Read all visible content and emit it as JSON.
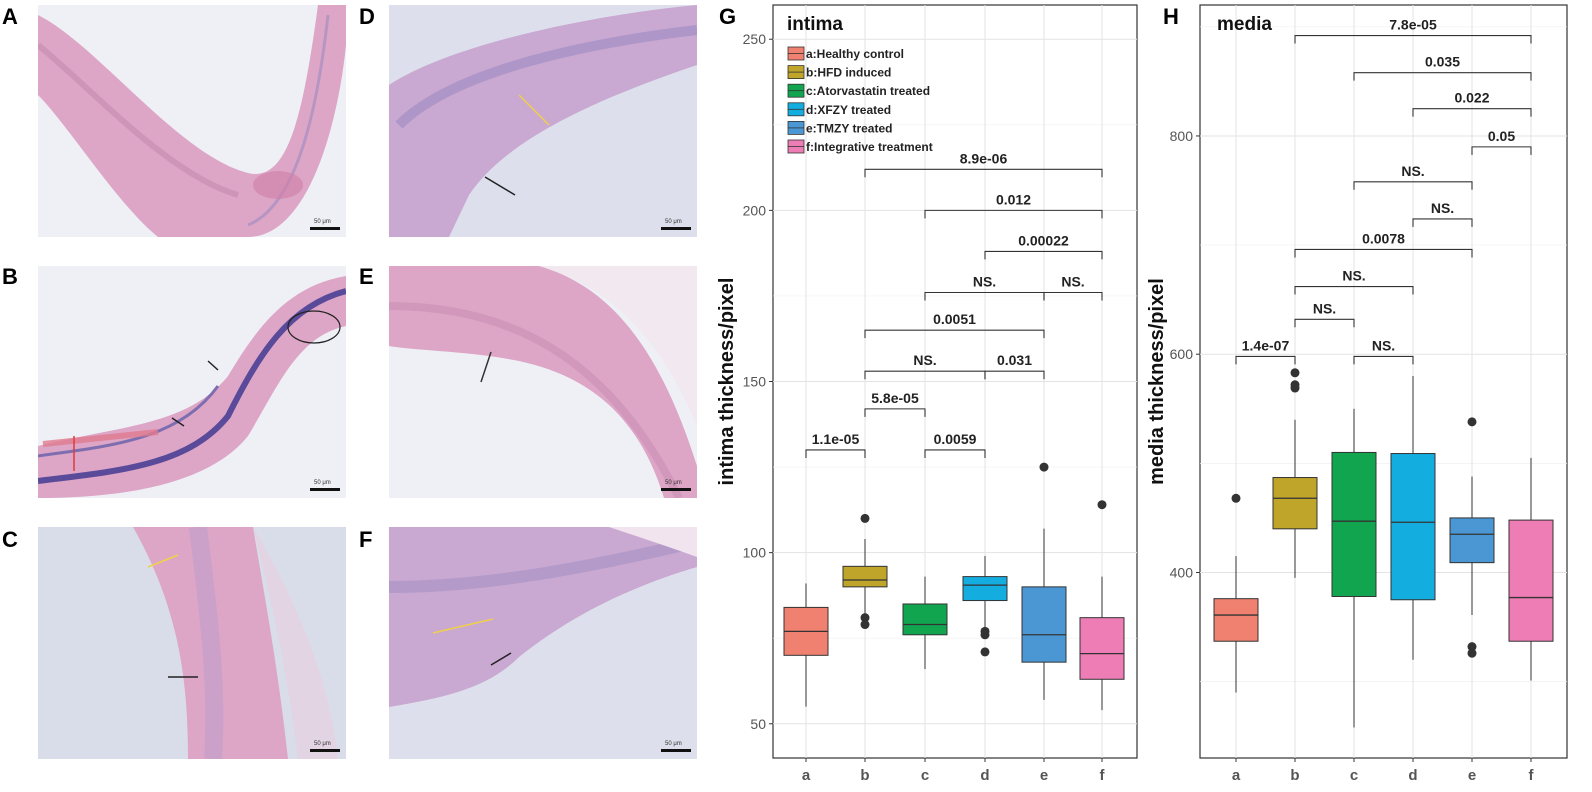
{
  "panels": {
    "A": {
      "letter": "A",
      "scale": "50 μm"
    },
    "B": {
      "letter": "B",
      "scale": "50 μm"
    },
    "C": {
      "letter": "C",
      "scale": "50 μm"
    },
    "D": {
      "letter": "D",
      "scale": "50 μm"
    },
    "E": {
      "letter": "E",
      "scale": "50 μm"
    },
    "F": {
      "letter": "F",
      "scale": "50 μm"
    },
    "G": {
      "letter": "G"
    },
    "H": {
      "letter": "H"
    }
  },
  "colors": {
    "a": "#F08070",
    "b": "#BFA52A",
    "c": "#12A550",
    "d": "#14ADE0",
    "e": "#4A97D4",
    "f": "#EE7DB6",
    "tissue_pink": "#DDA6C6",
    "tissue_purple": "#9E8BC2",
    "background": "#D9DDEA"
  },
  "chart_data": [
    {
      "type": "box",
      "title": "intima",
      "xlabel": "",
      "ylabel": "intima thickness/pixel",
      "ylim": [
        40,
        260
      ],
      "yticks": [
        50,
        100,
        150,
        200,
        250
      ],
      "grid": true,
      "legend_position": "top-left",
      "categories": [
        "a",
        "b",
        "c",
        "d",
        "e",
        "f"
      ],
      "legend": [
        "a:Healthy control",
        "b:HFD induced",
        "c:Atorvastatin treated",
        "d:XFZY treated",
        "e:TMZY treated",
        "f:Integrative treatment"
      ],
      "boxes": [
        {
          "group": "a",
          "whisker_low": 55,
          "q1": 70,
          "median": 77,
          "q3": 84,
          "whisker_high": 91,
          "outliers": []
        },
        {
          "group": "b",
          "whisker_low": 82,
          "q1": 90,
          "median": 92,
          "q3": 96,
          "whisker_high": 104,
          "outliers": [
            110,
            81,
            79
          ]
        },
        {
          "group": "c",
          "whisker_low": 66,
          "q1": 76,
          "median": 79,
          "q3": 85,
          "whisker_high": 93,
          "outliers": []
        },
        {
          "group": "d",
          "whisker_low": 78,
          "q1": 86,
          "median": 90.5,
          "q3": 93,
          "whisker_high": 99,
          "outliers": [
            77,
            76,
            71
          ]
        },
        {
          "group": "e",
          "whisker_low": 57,
          "q1": 68,
          "median": 76,
          "q3": 90,
          "whisker_high": 107,
          "outliers": [
            125
          ]
        },
        {
          "group": "f",
          "whisker_low": 54,
          "q1": 63,
          "median": 70.5,
          "q3": 81,
          "whisker_high": 93,
          "outliers": [
            114
          ]
        }
      ],
      "comparisons": [
        {
          "from": "a",
          "to": "b",
          "y": 130,
          "label": "1.1e-05"
        },
        {
          "from": "b",
          "to": "c",
          "y": 142,
          "label": "5.8e-05"
        },
        {
          "from": "c",
          "to": "d",
          "y": 130,
          "label": "0.0059"
        },
        {
          "from": "b",
          "to": "d",
          "y": 153,
          "label": "NS."
        },
        {
          "from": "d",
          "to": "e",
          "y": 153,
          "label": "0.031"
        },
        {
          "from": "b",
          "to": "e",
          "y": 165,
          "label": "0.0051"
        },
        {
          "from": "c",
          "to": "e",
          "y": 176,
          "label": "NS."
        },
        {
          "from": "e",
          "to": "f",
          "y": 176,
          "label": "NS."
        },
        {
          "from": "d",
          "to": "f",
          "y": 188,
          "label": "0.00022"
        },
        {
          "from": "c",
          "to": "f",
          "y": 200,
          "label": "0.012"
        },
        {
          "from": "b",
          "to": "f",
          "y": 212,
          "label": "8.9e-06"
        }
      ]
    },
    {
      "type": "box",
      "title": "media",
      "xlabel": "",
      "ylabel": "media thickness/pixel",
      "ylim": [
        230,
        920
      ],
      "yticks": [
        400,
        600,
        800
      ],
      "grid": true,
      "categories": [
        "a",
        "b",
        "c",
        "d",
        "e",
        "f"
      ],
      "boxes": [
        {
          "group": "a",
          "whisker_low": 290,
          "q1": 337,
          "median": 361,
          "q3": 376,
          "whisker_high": 415,
          "outliers": [
            468
          ]
        },
        {
          "group": "b",
          "whisker_low": 395,
          "q1": 440,
          "median": 468,
          "q3": 487,
          "whisker_high": 540,
          "outliers": [
            583,
            572,
            569
          ]
        },
        {
          "group": "c",
          "whisker_low": 258,
          "q1": 378,
          "median": 447,
          "q3": 510,
          "whisker_high": 550,
          "outliers": []
        },
        {
          "group": "d",
          "whisker_low": 320,
          "q1": 375,
          "median": 446,
          "q3": 509,
          "whisker_high": 580,
          "outliers": []
        },
        {
          "group": "e",
          "whisker_low": 361,
          "q1": 409,
          "median": 435,
          "q3": 450,
          "whisker_high": 488,
          "outliers": [
            538,
            332,
            326
          ]
        },
        {
          "group": "f",
          "whisker_low": 301,
          "q1": 337,
          "median": 377,
          "q3": 448,
          "whisker_high": 505,
          "outliers": []
        }
      ],
      "comparisons": [
        {
          "from": "a",
          "to": "b",
          "y": 598,
          "label": "1.4e-07"
        },
        {
          "from": "c",
          "to": "d",
          "y": 598,
          "label": "NS."
        },
        {
          "from": "b",
          "to": "c",
          "y": 632,
          "label": "NS."
        },
        {
          "from": "b",
          "to": "d",
          "y": 662,
          "label": "NS."
        },
        {
          "from": "b",
          "to": "e",
          "y": 696,
          "label": "0.0078"
        },
        {
          "from": "d",
          "to": "e",
          "y": 724,
          "label": "NS."
        },
        {
          "from": "c",
          "to": "e",
          "y": 758,
          "label": "NS."
        },
        {
          "from": "e",
          "to": "f",
          "y": 790,
          "label": "0.05"
        },
        {
          "from": "d",
          "to": "f",
          "y": 825,
          "label": "0.022"
        },
        {
          "from": "c",
          "to": "f",
          "y": 858,
          "label": "0.035"
        },
        {
          "from": "b",
          "to": "f",
          "y": 892,
          "label": "7.8e-05"
        }
      ]
    }
  ]
}
